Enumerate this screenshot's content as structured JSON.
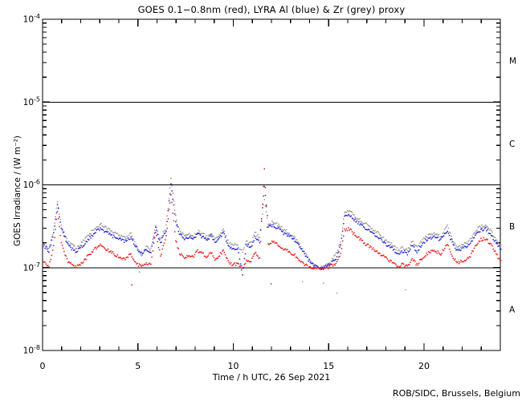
{
  "chart_data": {
    "type": "scatter",
    "title": "GOES 0.1−0.8nm (red), LYRA Al (blue) & Zr (grey) proxy",
    "xlabel": "Time / h UTC, 26 Sep 2021",
    "ylabel": "GOES Irradiance / (W m⁻²)",
    "attribution": "ROB/SIDC, Brussels, Belgium",
    "x_range": [
      0,
      24
    ],
    "x_major_ticks": [
      0,
      5,
      10,
      15,
      20
    ],
    "x_minor_step": 1,
    "y_scale": "log",
    "y_range_exp": [
      -8,
      -4
    ],
    "y_ticks": [
      {
        "exp": -4,
        "label": "10^-4"
      },
      {
        "exp": -5,
        "label": "10^-5"
      },
      {
        "exp": -6,
        "label": "10^-6"
      },
      {
        "exp": -7,
        "label": "10^-7"
      },
      {
        "exp": -8,
        "label": "10^-8"
      }
    ],
    "grid": false,
    "reference_lines_exp": [
      -5,
      -6,
      -7
    ],
    "flare_class_labels": [
      {
        "label": "M",
        "between_exp": [
          -5,
          -4
        ]
      },
      {
        "label": "C",
        "between_exp": [
          -6,
          -5
        ]
      },
      {
        "label": "B",
        "between_exp": [
          -7,
          -6
        ]
      },
      {
        "label": "A",
        "between_exp": [
          -8,
          -7
        ]
      }
    ],
    "series": [
      {
        "name": "LYRA Zr proxy",
        "color": "#999999",
        "points": [
          [
            0,
            2e-07
          ],
          [
            0.3,
            1.75e-07
          ],
          [
            0.55,
            2.9e-07
          ],
          [
            0.75,
            6.6e-07
          ],
          [
            0.95,
            3.3e-07
          ],
          [
            1.3,
            2.1e-07
          ],
          [
            1.7,
            1.75e-07
          ],
          [
            2.0,
            2e-07
          ],
          [
            2.35,
            2.45e-07
          ],
          [
            2.7,
            3e-07
          ],
          [
            3.0,
            3.4e-07
          ],
          [
            3.35,
            3e-07
          ],
          [
            3.7,
            2.7e-07
          ],
          [
            4.05,
            2.45e-07
          ],
          [
            4.35,
            2.3e-07
          ],
          [
            4.6,
            2.6e-07
          ],
          [
            4.85,
            1.9e-07
          ],
          [
            5.15,
            1.4e-07
          ],
          [
            5.4,
            1.8e-07
          ],
          [
            5.65,
            1.7e-07
          ],
          [
            5.9,
            3.3e-07
          ],
          [
            6.15,
            2.2e-07
          ],
          [
            6.45,
            3.2e-07
          ],
          [
            6.7,
            1.2e-06
          ],
          [
            6.95,
            4.2e-07
          ],
          [
            7.15,
            2.9e-07
          ],
          [
            7.4,
            2.4e-07
          ],
          [
            7.65,
            2.6e-07
          ],
          [
            7.85,
            2.4e-07
          ],
          [
            8.1,
            2.8e-07
          ],
          [
            8.35,
            2.6e-07
          ],
          [
            8.6,
            2.4e-07
          ],
          [
            8.8,
            2.7e-07
          ],
          [
            9.0,
            2.3e-07
          ],
          [
            9.25,
            2.5e-07
          ],
          [
            9.45,
            2.9e-07
          ],
          [
            9.7,
            2.1e-07
          ],
          [
            9.95,
            1.9e-07
          ],
          [
            10.2,
            1.9e-07
          ],
          [
            10.45,
            1.6e-07
          ],
          [
            10.65,
            2.1e-07
          ],
          [
            10.9,
            2e-07
          ],
          [
            11.1,
            2.7e-07
          ],
          [
            11.35,
            2.3e-07
          ],
          [
            11.6,
            7e-07
          ],
          [
            11.8,
            3.4e-07
          ],
          [
            12.05,
            3.6e-07
          ],
          [
            12.35,
            3.3e-07
          ],
          [
            12.65,
            2.9e-07
          ],
          [
            12.95,
            2.6e-07
          ],
          [
            13.25,
            2.3e-07
          ],
          [
            13.55,
            1.8e-07
          ],
          [
            13.85,
            1.4e-07
          ],
          [
            14.15,
            1.1e-07
          ],
          [
            14.45,
            1e-07
          ],
          [
            14.75,
            1.05e-07
          ],
          [
            15.05,
            1.15e-07
          ],
          [
            15.35,
            1.5e-07
          ],
          [
            15.6,
            2.1e-07
          ],
          [
            15.8,
            4.7e-07
          ],
          [
            16.05,
            4.9e-07
          ],
          [
            16.3,
            4.3e-07
          ],
          [
            16.55,
            3.9e-07
          ],
          [
            16.85,
            3.5e-07
          ],
          [
            17.15,
            3.1e-07
          ],
          [
            17.45,
            2.8e-07
          ],
          [
            17.75,
            2.4e-07
          ],
          [
            18.05,
            2.1e-07
          ],
          [
            18.35,
            1.9e-07
          ],
          [
            18.6,
            1.65e-07
          ],
          [
            18.85,
            1.75e-07
          ],
          [
            19.1,
            1.65e-07
          ],
          [
            19.35,
            2.1e-07
          ],
          [
            19.6,
            1.75e-07
          ],
          [
            19.9,
            2.2e-07
          ],
          [
            20.2,
            2.5e-07
          ],
          [
            20.5,
            2.65e-07
          ],
          [
            20.85,
            2.4e-07
          ],
          [
            21.2,
            3.3e-07
          ],
          [
            21.5,
            2.1e-07
          ],
          [
            21.75,
            1.75e-07
          ],
          [
            22.05,
            2e-07
          ],
          [
            22.35,
            2.1e-07
          ],
          [
            22.65,
            2.8e-07
          ],
          [
            22.95,
            3.2e-07
          ],
          [
            23.2,
            3.3e-07
          ],
          [
            23.5,
            2.8e-07
          ],
          [
            23.8,
            2.1e-07
          ],
          [
            24,
            1.9e-07
          ]
        ]
      },
      {
        "name": "LYRA Al proxy",
        "color": "#2222dd",
        "points": [
          [
            0,
            1.9e-07
          ],
          [
            0.3,
            1.6e-07
          ],
          [
            0.55,
            2.6e-07
          ],
          [
            0.75,
            6e-07
          ],
          [
            0.95,
            3e-07
          ],
          [
            1.3,
            1.9e-07
          ],
          [
            1.7,
            1.6e-07
          ],
          [
            2.0,
            1.8e-07
          ],
          [
            2.35,
            2.2e-07
          ],
          [
            2.7,
            2.7e-07
          ],
          [
            3.0,
            3e-07
          ],
          [
            3.35,
            2.7e-07
          ],
          [
            3.7,
            2.4e-07
          ],
          [
            4.05,
            2.2e-07
          ],
          [
            4.35,
            2.1e-07
          ],
          [
            4.6,
            2.4e-07
          ],
          [
            4.85,
            1.8e-07
          ],
          [
            5.15,
            1.5e-07
          ],
          [
            5.4,
            1.7e-07
          ],
          [
            5.65,
            1.6e-07
          ],
          [
            5.9,
            3e-07
          ],
          [
            6.15,
            2e-07
          ],
          [
            6.45,
            2.9e-07
          ],
          [
            6.7,
            1.05e-06
          ],
          [
            6.95,
            3.8e-07
          ],
          [
            7.15,
            2.6e-07
          ],
          [
            7.4,
            2.2e-07
          ],
          [
            7.65,
            2.4e-07
          ],
          [
            7.85,
            2.2e-07
          ],
          [
            8.1,
            2.6e-07
          ],
          [
            8.35,
            2.4e-07
          ],
          [
            8.6,
            2.2e-07
          ],
          [
            8.8,
            2.5e-07
          ],
          [
            9.0,
            2.1e-07
          ],
          [
            9.25,
            2.3e-07
          ],
          [
            9.45,
            2.7e-07
          ],
          [
            9.7,
            1.9e-07
          ],
          [
            9.95,
            1.7e-07
          ],
          [
            10.2,
            1.7e-07
          ],
          [
            10.45,
            8.5e-08
          ],
          [
            10.65,
            1.9e-07
          ],
          [
            10.9,
            1.8e-07
          ],
          [
            11.1,
            2.4e-07
          ],
          [
            11.35,
            2.1e-07
          ],
          [
            11.6,
            1e-06
          ],
          [
            11.8,
            3.1e-07
          ],
          [
            12.05,
            3.3e-07
          ],
          [
            12.35,
            3e-07
          ],
          [
            12.65,
            2.6e-07
          ],
          [
            12.95,
            2.4e-07
          ],
          [
            13.25,
            2.1e-07
          ],
          [
            13.55,
            1.7e-07
          ],
          [
            13.85,
            1.3e-07
          ],
          [
            14.15,
            1.1e-07
          ],
          [
            14.45,
            1e-07
          ],
          [
            14.75,
            1.05e-07
          ],
          [
            15.05,
            1.1e-07
          ],
          [
            15.35,
            1.3e-07
          ],
          [
            15.6,
            1.9e-07
          ],
          [
            15.8,
            4.2e-07
          ],
          [
            16.05,
            4.4e-07
          ],
          [
            16.3,
            3.9e-07
          ],
          [
            16.55,
            3.5e-07
          ],
          [
            16.85,
            3.1e-07
          ],
          [
            17.15,
            2.8e-07
          ],
          [
            17.45,
            2.5e-07
          ],
          [
            17.75,
            2.2e-07
          ],
          [
            18.05,
            1.9e-07
          ],
          [
            18.35,
            1.7e-07
          ],
          [
            18.6,
            1.5e-07
          ],
          [
            18.85,
            1.6e-07
          ],
          [
            19.1,
            1.5e-07
          ],
          [
            19.35,
            1.9e-07
          ],
          [
            19.6,
            1.6e-07
          ],
          [
            19.9,
            2e-07
          ],
          [
            20.2,
            2.3e-07
          ],
          [
            20.5,
            2.4e-07
          ],
          [
            20.85,
            2.2e-07
          ],
          [
            21.2,
            2.8e-07
          ],
          [
            21.5,
            1.9e-07
          ],
          [
            21.75,
            1.6e-07
          ],
          [
            22.05,
            1.8e-07
          ],
          [
            22.35,
            1.9e-07
          ],
          [
            22.65,
            2.5e-07
          ],
          [
            22.95,
            2.9e-07
          ],
          [
            23.2,
            3e-07
          ],
          [
            23.5,
            2.5e-07
          ],
          [
            23.8,
            1.9e-07
          ],
          [
            24,
            1.7e-07
          ]
        ]
      },
      {
        "name": "GOES 0.1-0.8nm",
        "color": "#ee1111",
        "points": [
          [
            0,
            1.2e-07
          ],
          [
            0.3,
            1.05e-07
          ],
          [
            0.55,
            1.8e-07
          ],
          [
            0.75,
            5e-07
          ],
          [
            0.95,
            2e-07
          ],
          [
            1.3,
            1.2e-07
          ],
          [
            1.7,
            1.05e-07
          ],
          [
            2.0,
            1.15e-07
          ],
          [
            2.35,
            1.4e-07
          ],
          [
            2.7,
            1.7e-07
          ],
          [
            3.0,
            1.9e-07
          ],
          [
            3.35,
            1.7e-07
          ],
          [
            3.7,
            1.5e-07
          ],
          [
            4.05,
            1.35e-07
          ],
          [
            4.35,
            1.3e-07
          ],
          [
            4.6,
            1.5e-07
          ],
          [
            4.85,
            1.15e-07
          ],
          [
            5.15,
            1.05e-07
          ],
          [
            5.4,
            1.15e-07
          ],
          [
            5.65,
            1.1e-07
          ],
          [
            5.9,
            2.8e-07
          ],
          [
            6.15,
            1.4e-07
          ],
          [
            6.45,
            2.4e-07
          ],
          [
            6.7,
            8e-07
          ],
          [
            6.95,
            2.2e-07
          ],
          [
            7.15,
            1.5e-07
          ],
          [
            7.4,
            1.35e-07
          ],
          [
            7.65,
            1.45e-07
          ],
          [
            7.85,
            1.35e-07
          ],
          [
            8.1,
            1.6e-07
          ],
          [
            8.35,
            1.5e-07
          ],
          [
            8.6,
            1.35e-07
          ],
          [
            8.8,
            1.55e-07
          ],
          [
            9.0,
            1.3e-07
          ],
          [
            9.25,
            1.4e-07
          ],
          [
            9.45,
            1.7e-07
          ],
          [
            9.7,
            1.2e-07
          ],
          [
            9.95,
            1.1e-07
          ],
          [
            10.2,
            1.15e-07
          ],
          [
            10.45,
            1e-07
          ],
          [
            10.65,
            1.25e-07
          ],
          [
            10.9,
            1.2e-07
          ],
          [
            11.1,
            1.55e-07
          ],
          [
            11.35,
            1.3e-07
          ],
          [
            11.6,
            1.65e-06
          ],
          [
            11.8,
            1.9e-07
          ],
          [
            12.05,
            2.1e-07
          ],
          [
            12.35,
            1.9e-07
          ],
          [
            12.65,
            1.7e-07
          ],
          [
            12.95,
            1.55e-07
          ],
          [
            13.25,
            1.4e-07
          ],
          [
            13.55,
            1.2e-07
          ],
          [
            13.85,
            1.05e-07
          ],
          [
            14.15,
            1e-07
          ],
          [
            14.45,
            9.8e-08
          ],
          [
            14.75,
            1e-07
          ],
          [
            15.05,
            1.05e-07
          ],
          [
            15.35,
            1.15e-07
          ],
          [
            15.6,
            1.5e-07
          ],
          [
            15.8,
            2.9e-07
          ],
          [
            16.05,
            3e-07
          ],
          [
            16.3,
            2.6e-07
          ],
          [
            16.55,
            2.3e-07
          ],
          [
            16.85,
            2e-07
          ],
          [
            17.15,
            1.8e-07
          ],
          [
            17.45,
            1.6e-07
          ],
          [
            17.75,
            1.45e-07
          ],
          [
            18.05,
            1.3e-07
          ],
          [
            18.35,
            1.15e-07
          ],
          [
            18.6,
            1.05e-07
          ],
          [
            18.85,
            1.1e-07
          ],
          [
            19.1,
            1.05e-07
          ],
          [
            19.35,
            1.3e-07
          ],
          [
            19.6,
            1.1e-07
          ],
          [
            19.9,
            1.35e-07
          ],
          [
            20.2,
            1.55e-07
          ],
          [
            20.5,
            1.65e-07
          ],
          [
            20.85,
            1.5e-07
          ],
          [
            21.2,
            2e-07
          ],
          [
            21.5,
            1.35e-07
          ],
          [
            21.75,
            1.15e-07
          ],
          [
            22.05,
            1.25e-07
          ],
          [
            22.35,
            1.35e-07
          ],
          [
            22.65,
            1.8e-07
          ],
          [
            22.95,
            2.2e-07
          ],
          [
            23.2,
            2.3e-07
          ],
          [
            23.5,
            1.9e-07
          ],
          [
            23.8,
            1.4e-07
          ],
          [
            24,
            1.25e-07
          ]
        ]
      }
    ],
    "outliers": [
      {
        "color": "#ee1111",
        "points": [
          [
            4.65,
            6.3e-08
          ],
          [
            11.95,
            6.5e-08
          ]
        ]
      },
      {
        "color": "#999999",
        "points": [
          [
            5.05,
            9e-08
          ],
          [
            13.6,
            6.9e-08
          ],
          [
            14.7,
            6.6e-08
          ],
          [
            15.4,
            5e-08
          ],
          [
            19.0,
            5.5e-08
          ]
        ]
      }
    ],
    "layout": {
      "legend": "none",
      "frame": true,
      "tick_direction": "in"
    }
  }
}
